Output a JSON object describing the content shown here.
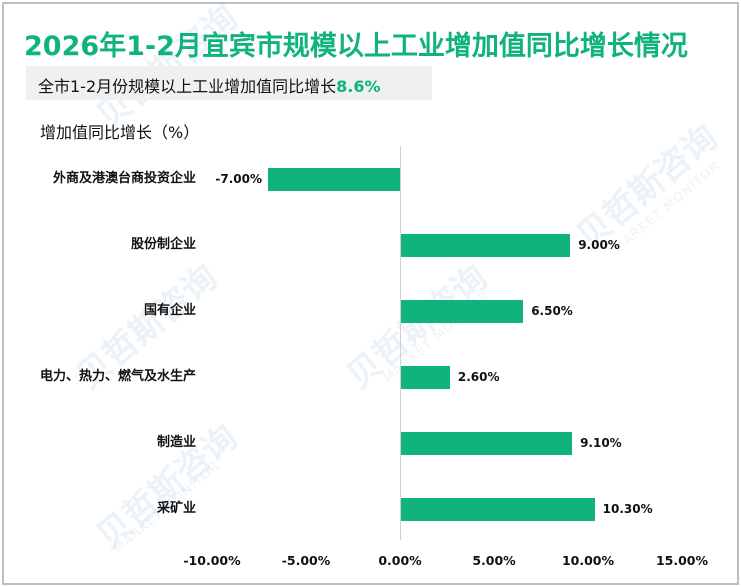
{
  "header": {
    "title": "2026年1-2月宜宾市规模以上工业增加值同比增长情况",
    "subtitle_prefix": "全市1-2月份规模以上工业增加值同比增长",
    "subtitle_value": "8.6%"
  },
  "colors": {
    "accent": "#10b27d",
    "bar": "#10b27d",
    "subtitle_bg": "#f0f0f0",
    "border": "#bfbfbf"
  },
  "watermark": {
    "brand": "贝哲斯咨询",
    "tagline": "MARKET MONITOR"
  },
  "chart_data": {
    "type": "bar",
    "orientation": "horizontal",
    "title": "2026年1-2月宜宾市规模以上工业增加值同比增长情况",
    "subtitle": "全市1-2月份规模以上工业增加值同比增长8.6%",
    "ylabel": "增加值同比增长（%）",
    "xlabel": "",
    "categories": [
      "外商及港澳台商投资企业",
      "股份制企业",
      "国有企业",
      "电力、热力、燃气及水生产",
      "制造业",
      "采矿业"
    ],
    "values": [
      -7.0,
      9.0,
      6.5,
      2.6,
      9.1,
      10.3
    ],
    "value_labels": [
      "-7.00%",
      "9.00%",
      "6.50%",
      "2.60%",
      "9.10%",
      "10.30%"
    ],
    "xlim": [
      -10,
      15
    ],
    "x_ticks": [
      "-10.00%",
      "-5.00%",
      "0.00%",
      "5.00%",
      "10.00%",
      "15.00%"
    ],
    "grid": false,
    "legend": "none"
  }
}
